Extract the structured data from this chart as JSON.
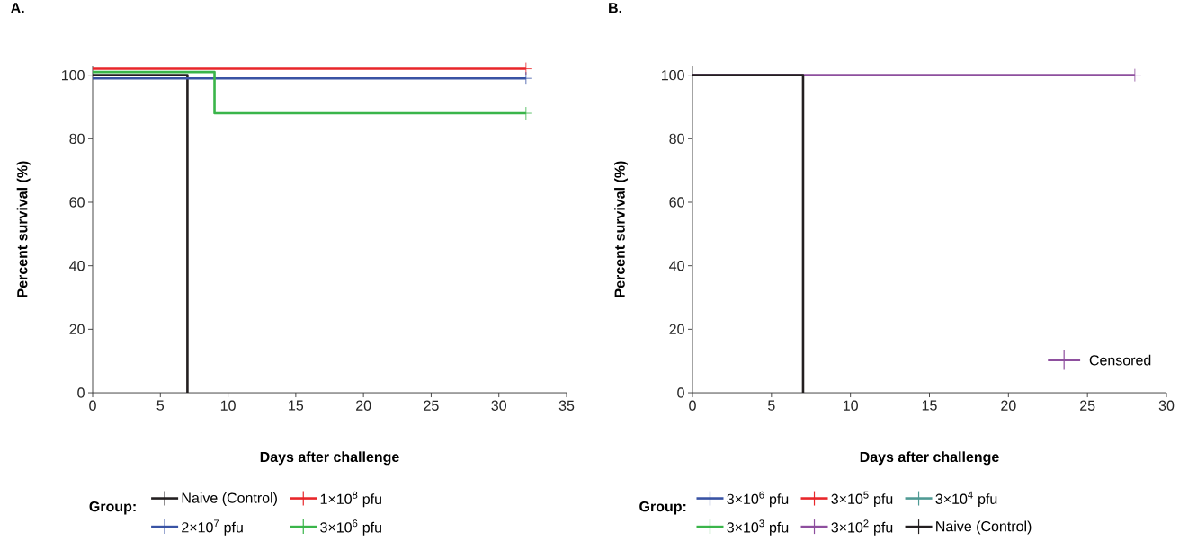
{
  "chart_data": [
    {
      "type": "step",
      "title": "A.",
      "xlabel": "Days after challenge",
      "ylabel": "Percent survival (%)",
      "legend_title": "Group:",
      "xlim": [
        0,
        35
      ],
      "ylim": [
        0,
        103
      ],
      "xticks": [
        0,
        5,
        10,
        15,
        20,
        25,
        30,
        35
      ],
      "yticks": [
        0,
        20,
        40,
        60,
        80,
        100
      ],
      "grid": false,
      "legend": "bottom",
      "line_style": "solid",
      "series": [
        {
          "name": "Naive (Control)",
          "color": "#231f20",
          "x": [
            0,
            7
          ],
          "values": [
            100,
            0
          ]
        },
        {
          "name": "1×10$^{8}$ pfu",
          "color": "#e8262a",
          "x": [
            0,
            32
          ],
          "values": [
            102,
            102
          ]
        },
        {
          "name": "2×10$^{7}$ pfu",
          "color": "#3953a4",
          "x": [
            0,
            32
          ],
          "values": [
            99,
            99
          ]
        },
        {
          "name": "3×10$^{6}$ pfu",
          "color": "#3ab54a",
          "x": [
            0,
            9,
            32
          ],
          "values": [
            101,
            88,
            88
          ]
        },
        {
          "type": "scatter",
          "marker": "cross",
          "color": "#231f20",
          "colors": [
            "#e8262a",
            "#3953a4",
            "#3ab54a"
          ],
          "x": [
            32,
            32,
            32
          ],
          "values": [
            102,
            99,
            88
          ]
        }
      ]
    },
    {
      "type": "step",
      "title": "B.",
      "xlabel": "Days after challenge",
      "ylabel": "Percent survival (%)",
      "legend_title": "Group:",
      "xlim": [
        0,
        30
      ],
      "ylim": [
        0,
        103
      ],
      "xticks": [
        0,
        5,
        10,
        15,
        20,
        25,
        30
      ],
      "yticks": [
        0,
        20,
        40,
        60,
        80,
        100
      ],
      "grid": false,
      "legend": "bottom",
      "line_style": "solid",
      "series": [
        {
          "name": "3×10$^{6}$ pfu",
          "color": "#3953a4"
        },
        {
          "name": "3×10$^{5}$ pfu",
          "color": "#e8262a"
        },
        {
          "name": "3×10$^{4}$ pfu",
          "color": "#4f9a94"
        },
        {
          "name": "3×10$^{3}$ pfu",
          "color": "#3ab54a"
        },
        {
          "name": "3×10$^{2}$ pfu",
          "color": "#8e4f9e",
          "x": [
            0,
            28
          ],
          "values": [
            100,
            100
          ]
        },
        {
          "name": "Naive (Control)",
          "color": "#231f20",
          "x": [
            0,
            7
          ],
          "values": [
            100,
            0
          ]
        },
        {
          "type": "scatter",
          "marker": "cross",
          "name": "Censored",
          "color": "#8e4f9e",
          "x": [
            28
          ],
          "values": [
            100
          ]
        }
      ]
    }
  ]
}
